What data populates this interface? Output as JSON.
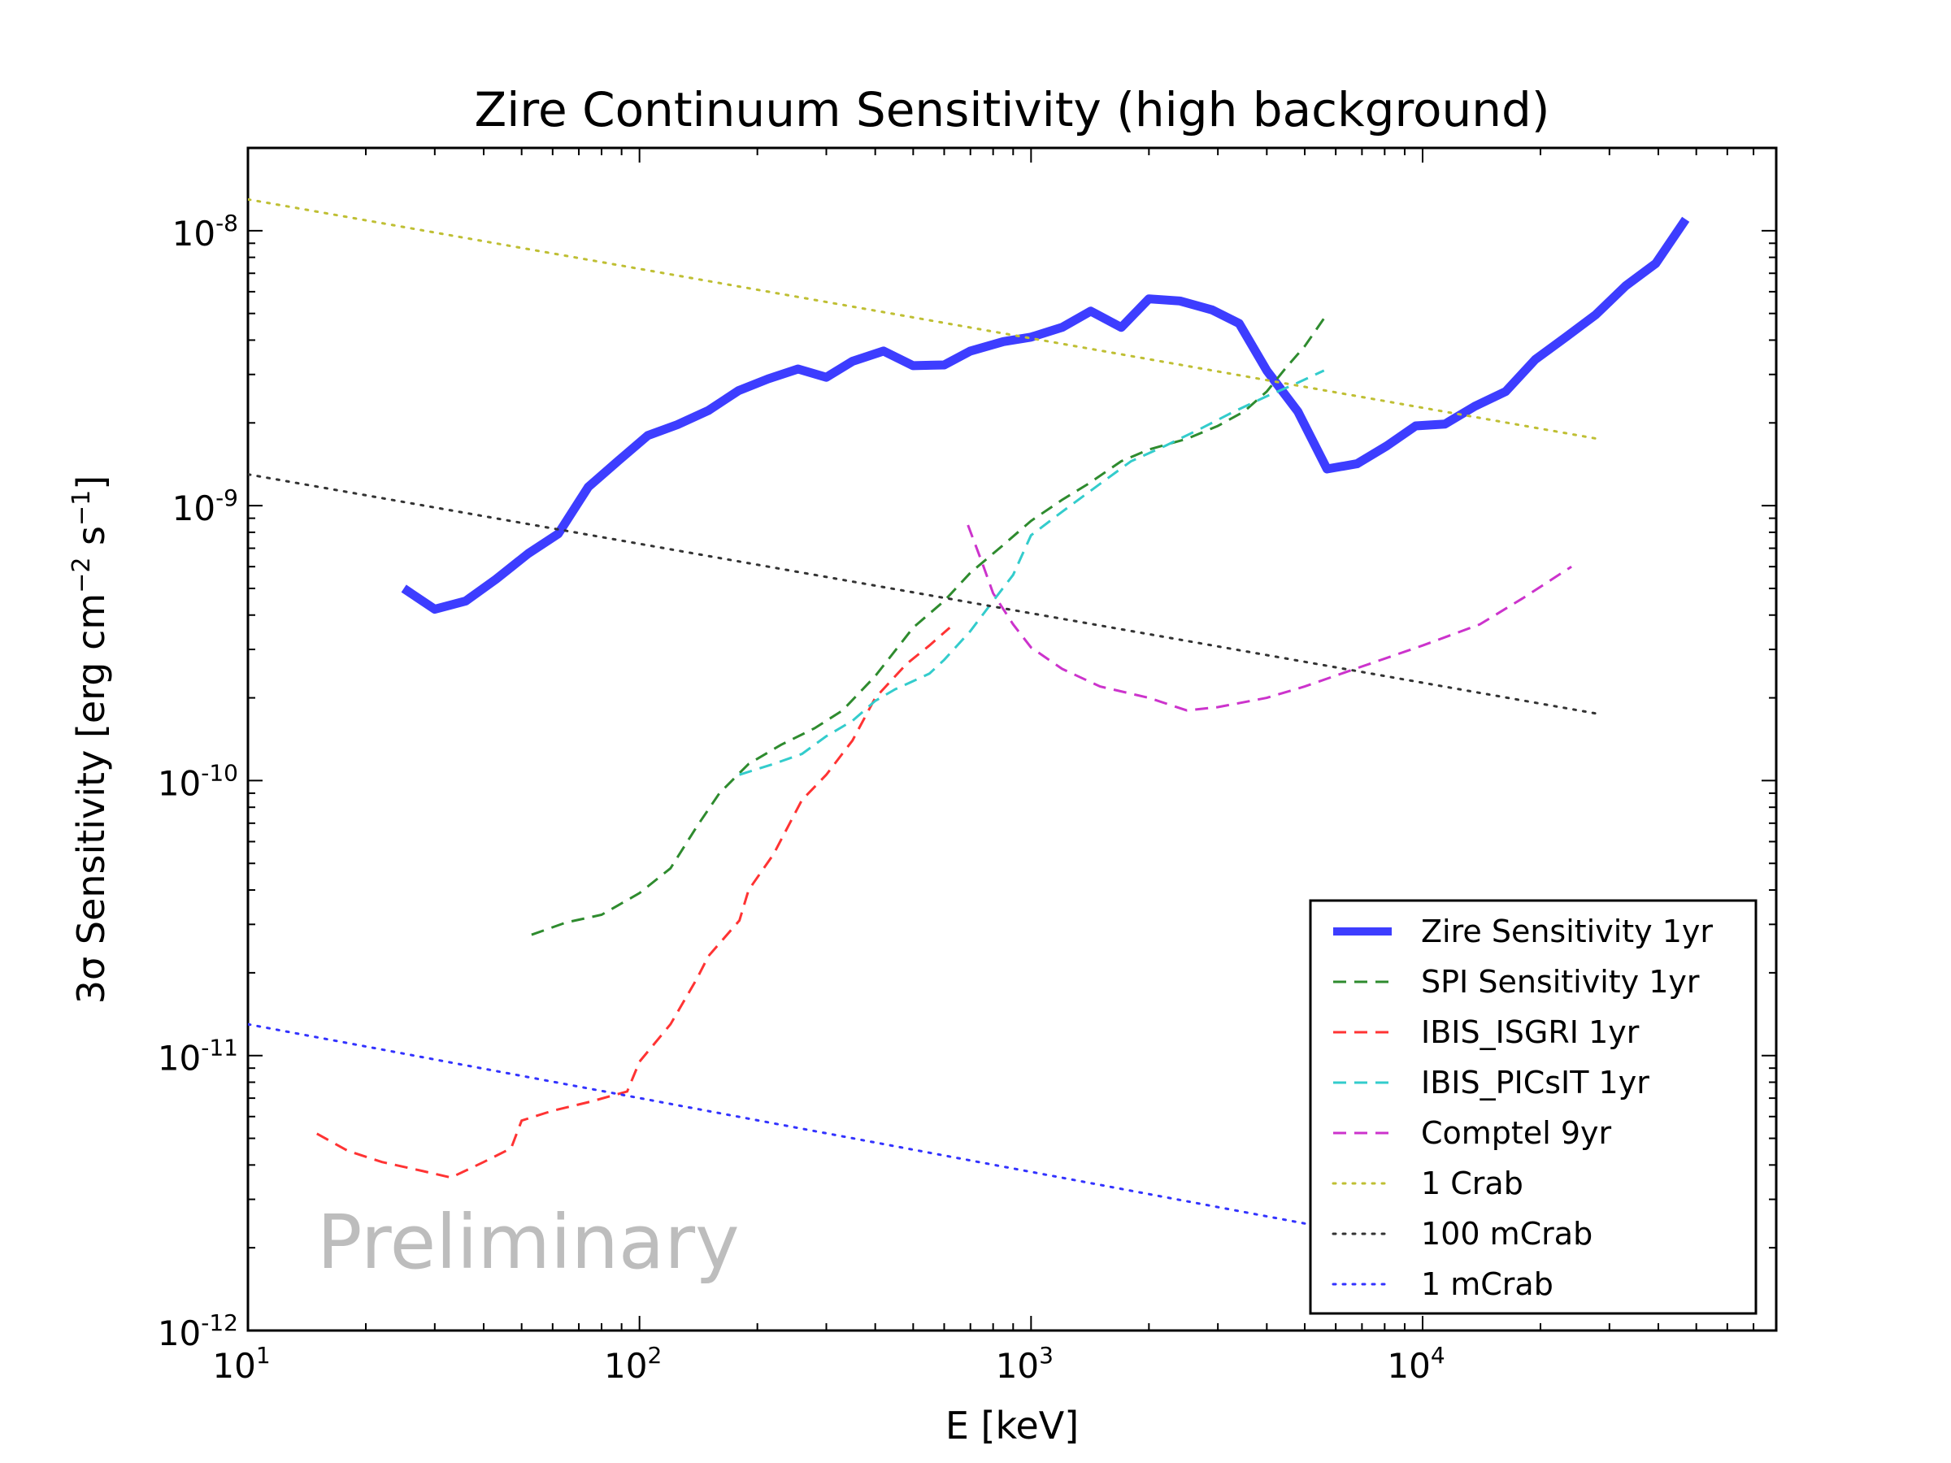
{
  "chart_data": {
    "type": "line",
    "title": "Zire Continuum Sensitivity (high background)",
    "xlabel": "E [keV]",
    "ylabel_prefix": "3σ Sensitivity [erg cm",
    "ylabel_exp1": "−2",
    "ylabel_mid": " s",
    "ylabel_exp2": "−1",
    "ylabel_suffix": "]",
    "x_scale": "log",
    "y_scale": "log",
    "xlim": [
      10,
      80000
    ],
    "ylim": [
      1e-12,
      2e-08
    ],
    "x_ticks": [
      {
        "value": 10,
        "base": "10",
        "exp": "1"
      },
      {
        "value": 100,
        "base": "10",
        "exp": "2"
      },
      {
        "value": 1000,
        "base": "10",
        "exp": "3"
      },
      {
        "value": 10000,
        "base": "10",
        "exp": "4"
      }
    ],
    "y_ticks": [
      {
        "value": 1e-12,
        "base": "10",
        "exp": "-12"
      },
      {
        "value": 1e-11,
        "base": "10",
        "exp": "-11"
      },
      {
        "value": 1e-10,
        "base": "10",
        "exp": "-10"
      },
      {
        "value": 1e-09,
        "base": "10",
        "exp": "-9"
      },
      {
        "value": 1e-08,
        "base": "10",
        "exp": "-8"
      }
    ],
    "grid": false,
    "legend_position": "lower-right",
    "annotation": "Preliminary",
    "series": [
      {
        "name": "Zire Sensitivity 1yr",
        "color": "#3333ff",
        "style": "solid-thick",
        "points": [
          [
            25,
            5e-10
          ],
          [
            30,
            4.2e-10
          ],
          [
            36,
            4.5e-10
          ],
          [
            43,
            5.4e-10
          ],
          [
            52,
            6.7e-10
          ],
          [
            62,
            7.9e-10
          ],
          [
            74,
            1.17e-09
          ],
          [
            88,
            1.45e-09
          ],
          [
            105,
            1.8e-09
          ],
          [
            125,
            1.97e-09
          ],
          [
            150,
            2.22e-09
          ],
          [
            179,
            2.62e-09
          ],
          [
            213,
            2.89e-09
          ],
          [
            254,
            3.14e-09
          ],
          [
            300,
            2.93e-09
          ],
          [
            350,
            3.35e-09
          ],
          [
            420,
            3.65e-09
          ],
          [
            500,
            3.23e-09
          ],
          [
            600,
            3.25e-09
          ],
          [
            700,
            3.65e-09
          ],
          [
            850,
            3.95e-09
          ],
          [
            1000,
            4.1e-09
          ],
          [
            1200,
            4.45e-09
          ],
          [
            1420,
            5.1e-09
          ],
          [
            1700,
            4.45e-09
          ],
          [
            2000,
            5.65e-09
          ],
          [
            2400,
            5.55e-09
          ],
          [
            2900,
            5.15e-09
          ],
          [
            3400,
            4.6e-09
          ],
          [
            4000,
            3.1e-09
          ],
          [
            4800,
            2.2e-09
          ],
          [
            5700,
            1.36e-09
          ],
          [
            6800,
            1.42e-09
          ],
          [
            8100,
            1.65e-09
          ],
          [
            9600,
            1.95e-09
          ],
          [
            11400,
            1.98e-09
          ],
          [
            13600,
            2.3e-09
          ],
          [
            16300,
            2.6e-09
          ],
          [
            19400,
            3.4e-09
          ],
          [
            23200,
            4.1e-09
          ],
          [
            27700,
            4.95e-09
          ],
          [
            33000,
            6.3e-09
          ],
          [
            39400,
            7.6e-09
          ],
          [
            47000,
            1.1e-08
          ]
        ]
      },
      {
        "name": "SPI Sensitivity 1yr",
        "color": "#2e8b2e",
        "style": "dashed",
        "points": [
          [
            53,
            2.75e-11
          ],
          [
            65,
            3.05e-11
          ],
          [
            80,
            3.25e-11
          ],
          [
            100,
            3.9e-11
          ],
          [
            120,
            4.8e-11
          ],
          [
            140,
            6.8e-11
          ],
          [
            160,
            9e-11
          ],
          [
            190,
            1.15e-10
          ],
          [
            230,
            1.35e-10
          ],
          [
            280,
            1.55e-10
          ],
          [
            330,
            1.8e-10
          ],
          [
            400,
            2.4e-10
          ],
          [
            500,
            3.6e-10
          ],
          [
            600,
            4.5e-10
          ],
          [
            700,
            5.7e-10
          ],
          [
            850,
            7.2e-10
          ],
          [
            1000,
            8.8e-10
          ],
          [
            1200,
            1.05e-09
          ],
          [
            1400,
            1.2e-09
          ],
          [
            1700,
            1.45e-09
          ],
          [
            2000,
            1.6e-09
          ],
          [
            2500,
            1.75e-09
          ],
          [
            3000,
            1.95e-09
          ],
          [
            3500,
            2.2e-09
          ],
          [
            4000,
            2.6e-09
          ],
          [
            4500,
            3.2e-09
          ],
          [
            5000,
            3.8e-09
          ],
          [
            5600,
            4.8e-09
          ]
        ]
      },
      {
        "name": "IBIS_ISGRI 1yr",
        "color": "#ff3333",
        "style": "dashed",
        "points": [
          [
            15,
            5.2e-12
          ],
          [
            18,
            4.5e-12
          ],
          [
            22,
            4.1e-12
          ],
          [
            28,
            3.8e-12
          ],
          [
            33,
            3.6e-12
          ],
          [
            40,
            4.1e-12
          ],
          [
            47,
            4.6e-12
          ],
          [
            50,
            5.8e-12
          ],
          [
            60,
            6.3e-12
          ],
          [
            75,
            6.8e-12
          ],
          [
            93,
            7.4e-12
          ],
          [
            100,
            9.5e-12
          ],
          [
            120,
            1.3e-11
          ],
          [
            140,
            1.9e-11
          ],
          [
            150,
            2.3e-11
          ],
          [
            180,
            3.1e-11
          ],
          [
            190,
            4e-11
          ],
          [
            220,
            5.4e-11
          ],
          [
            260,
            8.5e-11
          ],
          [
            300,
            1.05e-10
          ],
          [
            350,
            1.4e-10
          ],
          [
            400,
            2e-10
          ],
          [
            480,
            2.65e-10
          ],
          [
            550,
            3.1e-10
          ],
          [
            620,
            3.6e-10
          ]
        ]
      },
      {
        "name": "IBIS_PICsIT 1yr",
        "color": "#33cccc",
        "style": "dashed",
        "points": [
          [
            180,
            1.05e-10
          ],
          [
            220,
            1.15e-10
          ],
          [
            260,
            1.25e-10
          ],
          [
            300,
            1.45e-10
          ],
          [
            350,
            1.65e-10
          ],
          [
            400,
            1.95e-10
          ],
          [
            450,
            2.15e-10
          ],
          [
            500,
            2.3e-10
          ],
          [
            550,
            2.45e-10
          ],
          [
            600,
            2.75e-10
          ],
          [
            700,
            3.5e-10
          ],
          [
            800,
            4.5e-10
          ],
          [
            900,
            5.6e-10
          ],
          [
            1000,
            7.8e-10
          ],
          [
            1200,
            9.5e-10
          ],
          [
            1500,
            1.2e-09
          ],
          [
            1800,
            1.45e-09
          ],
          [
            2200,
            1.65e-09
          ],
          [
            2700,
            1.9e-09
          ],
          [
            3300,
            2.2e-09
          ],
          [
            4000,
            2.5e-09
          ],
          [
            4800,
            2.8e-09
          ],
          [
            5600,
            3.1e-09
          ]
        ]
      },
      {
        "name": "Comptel 9yr",
        "color": "#cc33cc",
        "style": "dashed",
        "points": [
          [
            690,
            8.5e-10
          ],
          [
            750,
            6.2e-10
          ],
          [
            800,
            4.8e-10
          ],
          [
            900,
            3.7e-10
          ],
          [
            1000,
            3.05e-10
          ],
          [
            1200,
            2.55e-10
          ],
          [
            1500,
            2.2e-10
          ],
          [
            2000,
            2e-10
          ],
          [
            2500,
            1.8e-10
          ],
          [
            3000,
            1.85e-10
          ],
          [
            4000,
            2e-10
          ],
          [
            5000,
            2.2e-10
          ],
          [
            7000,
            2.6e-10
          ],
          [
            10000,
            3.1e-10
          ],
          [
            14000,
            3.7e-10
          ],
          [
            18000,
            4.6e-10
          ],
          [
            24000,
            6e-10
          ]
        ]
      },
      {
        "name": "1 Crab",
        "color": "#bfbf33",
        "style": "dotted",
        "points": [
          [
            10,
            1.3e-08
          ],
          [
            28000,
            1.75e-09
          ]
        ]
      },
      {
        "name": "100 mCrab",
        "color": "#333333",
        "style": "dotted",
        "points": [
          [
            10,
            1.3e-09
          ],
          [
            28000,
            1.75e-10
          ]
        ]
      },
      {
        "name": "1 mCrab",
        "color": "#3333ff",
        "style": "dotted",
        "points": [
          [
            10,
            1.3e-11
          ],
          [
            5000,
            2.45e-12
          ]
        ]
      }
    ]
  }
}
